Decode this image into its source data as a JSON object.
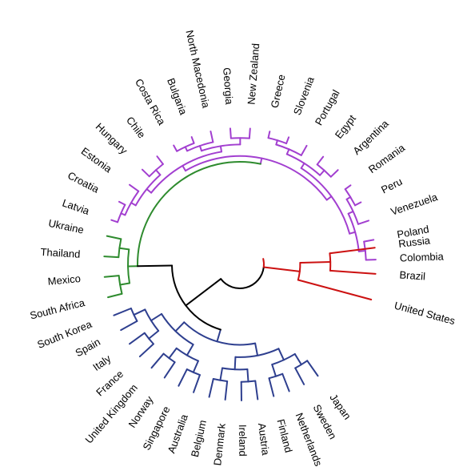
{
  "diagram": {
    "type": "circular-dendrogram",
    "clusters": [
      {
        "id": "purple",
        "color": "#a23fd0",
        "leaves": [
          "Latvia",
          "Croatia",
          "Estonia",
          "Hungary",
          "Chile",
          "Costa Rica",
          "Bulgaria",
          "North Macedonia",
          "Georgia",
          "New Zealand",
          "Greece",
          "Slovenia",
          "Portugal",
          "Egypt",
          "Argentina",
          "Romania",
          "Peru",
          "Venezuela",
          "Poland",
          "Colombia"
        ]
      },
      {
        "id": "green",
        "color": "#2e8b2e",
        "leaves": [
          "South Africa",
          "Mexico",
          "Thailand",
          "Ukraine"
        ]
      },
      {
        "id": "blue",
        "color": "#2e3f8f",
        "leaves": [
          "Japan",
          "Sweden",
          "Netherlands",
          "Finland",
          "Austria",
          "Ireland",
          "Denmark",
          "Belgium",
          "Australia",
          "Singapore",
          "Norway",
          "United Kingdom",
          "France",
          "Italy",
          "Spain",
          "South Korea"
        ]
      },
      {
        "id": "red",
        "color": "#cc1111",
        "leaves": [
          "United States",
          "Brazil",
          "Russia"
        ]
      }
    ],
    "trunk_color": "#000000"
  }
}
